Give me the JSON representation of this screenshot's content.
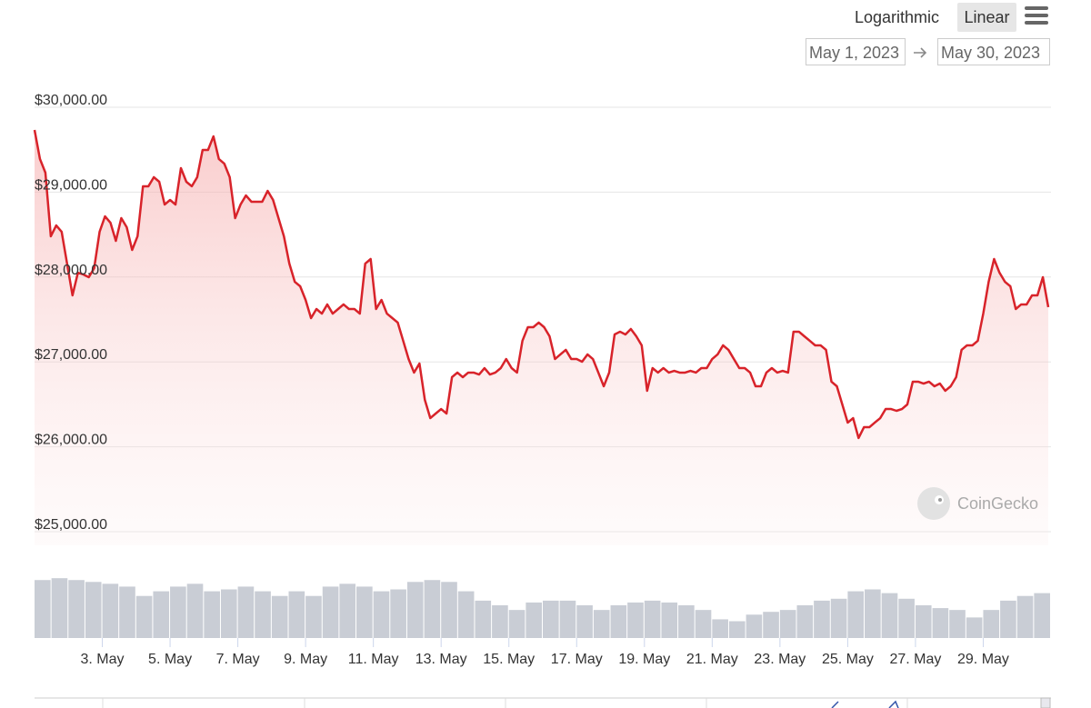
{
  "controls": {
    "scale_options": [
      "Logarithmic",
      "Linear"
    ],
    "date_from": "May 1, 2023",
    "date_to": "May 30, 2023",
    "watermark": "CoinGecko"
  },
  "chart_data": [
    {
      "type": "line",
      "color": "#d8232a",
      "grid": true,
      "xlim": [
        1,
        31
      ],
      "ylim": [
        25000,
        30000
      ],
      "yticks": [
        {
          "value": 25000,
          "label": "$25,000.00"
        },
        {
          "value": 26000,
          "label": "$26,000.00"
        },
        {
          "value": 27000,
          "label": "$27,000.00"
        },
        {
          "value": 28000,
          "label": "$28,000.00"
        },
        {
          "value": 29000,
          "label": "$29,000.00"
        },
        {
          "value": 30000,
          "label": "$30,000.00"
        }
      ],
      "xticks": [
        {
          "value": 3,
          "label": "3. May"
        },
        {
          "value": 5,
          "label": "5. May"
        },
        {
          "value": 7,
          "label": "7. May"
        },
        {
          "value": 9,
          "label": "9. May"
        },
        {
          "value": 11,
          "label": "11. May"
        },
        {
          "value": 13,
          "label": "13. May"
        },
        {
          "value": 15,
          "label": "15. May"
        },
        {
          "value": 17,
          "label": "17. May"
        },
        {
          "value": 19,
          "label": "19. May"
        },
        {
          "value": 21,
          "label": "21. May"
        },
        {
          "value": 23,
          "label": "23. May"
        },
        {
          "value": 25,
          "label": "25. May"
        },
        {
          "value": 27,
          "label": "27. May"
        },
        {
          "value": 29,
          "label": "29. May"
        }
      ],
      "x": [
        1,
        1.16,
        1.32,
        1.48,
        1.64,
        1.8,
        1.96,
        2.12,
        2.28,
        2.44,
        2.6,
        2.76,
        2.92,
        3.08,
        3.24,
        3.4,
        3.56,
        3.72,
        3.88,
        4.04,
        4.2,
        4.36,
        4.52,
        4.68,
        4.84,
        5,
        5.16,
        5.32,
        5.48,
        5.64,
        5.8,
        5.96,
        6.12,
        6.28,
        6.44,
        6.6,
        6.76,
        6.92,
        7.08,
        7.24,
        7.4,
        7.56,
        7.72,
        7.88,
        8.04,
        8.2,
        8.36,
        8.52,
        8.68,
        8.84,
        9,
        9.16,
        9.32,
        9.48,
        9.64,
        9.8,
        9.96,
        10.12,
        10.28,
        10.44,
        10.6,
        10.76,
        10.92,
        11.08,
        11.24,
        11.4,
        11.56,
        11.72,
        11.88,
        12.04,
        12.2,
        12.36,
        12.52,
        12.68,
        12.84,
        13,
        13.16,
        13.32,
        13.48,
        13.64,
        13.8,
        13.96,
        14.12,
        14.28,
        14.44,
        14.6,
        14.76,
        14.92,
        15.08,
        15.24,
        15.4,
        15.56,
        15.72,
        15.88,
        16.04,
        16.2,
        16.36,
        16.52,
        16.68,
        16.84,
        17,
        17.16,
        17.32,
        17.48,
        17.64,
        17.8,
        17.96,
        18.12,
        18.28,
        18.44,
        18.6,
        18.76,
        18.92,
        19.08,
        19.24,
        19.4,
        19.56,
        19.72,
        19.88,
        20.04,
        20.2,
        20.36,
        20.52,
        20.68,
        20.84,
        21,
        21.16,
        21.32,
        21.48,
        21.64,
        21.8,
        21.96,
        22.12,
        22.28,
        22.44,
        22.6,
        22.76,
        22.92,
        23.08,
        23.24,
        23.4,
        23.56,
        23.72,
        23.88,
        24.04,
        24.2,
        24.36,
        24.52,
        24.68,
        24.84,
        25,
        25.16,
        25.32,
        25.48,
        25.64,
        25.8,
        25.96,
        26.12,
        26.28,
        26.44,
        26.6,
        26.76,
        26.92,
        27.08,
        27.24,
        27.4,
        27.56,
        27.72,
        27.88,
        28.04,
        28.2,
        28.36,
        28.52,
        28.68,
        28.84,
        29,
        29.16,
        29.32,
        29.48,
        29.64,
        29.8,
        29.96,
        30.12,
        30.28,
        30.44,
        30.6,
        30.76,
        30.92
      ],
      "values": [
        29732,
        29390,
        29229,
        28480,
        28608,
        28533,
        28158,
        27784,
        28051,
        28030,
        27998,
        28105,
        28533,
        28715,
        28640,
        28426,
        28694,
        28587,
        28319,
        28480,
        29069,
        29069,
        29176,
        29122,
        28854,
        28908,
        28854,
        29283,
        29122,
        29069,
        29176,
        29497,
        29497,
        29657,
        29390,
        29336,
        29176,
        28694,
        28854,
        28961,
        28887,
        28887,
        28887,
        29015,
        28908,
        28694,
        28480,
        28158,
        27944,
        27891,
        27730,
        27516,
        27623,
        27569,
        27677,
        27569,
        27623,
        27677,
        27623,
        27623,
        27569,
        28158,
        28212,
        27623,
        27730,
        27569,
        27516,
        27463,
        27249,
        27034,
        26874,
        26981,
        26552,
        26338,
        26392,
        26445,
        26392,
        26820,
        26874,
        26820,
        26874,
        26874,
        26852,
        26927,
        26852,
        26874,
        26927,
        27034,
        26927,
        26874,
        27249,
        27409,
        27409,
        27463,
        27409,
        27302,
        27034,
        27088,
        27142,
        27034,
        27034,
        27002,
        27088,
        27034,
        26874,
        26713,
        26874,
        27323,
        27356,
        27323,
        27388,
        27302,
        27195,
        26660,
        26927,
        26874,
        26927,
        26874,
        26895,
        26874,
        26874,
        26895,
        26874,
        26927,
        26927,
        27034,
        27088,
        27195,
        27142,
        27034,
        26927,
        26927,
        26874,
        26713,
        26713,
        26874,
        26927,
        26874,
        26895,
        26874,
        27356,
        27356,
        27302,
        27249,
        27195,
        27195,
        27142,
        26767,
        26713,
        26499,
        26285,
        26338,
        26103,
        26231,
        26231,
        26285,
        26338,
        26445,
        26445,
        26424,
        26445,
        26499,
        26767,
        26767,
        26745,
        26767,
        26713,
        26745,
        26660,
        26713,
        26820,
        27142,
        27195,
        27195,
        27249,
        27569,
        27944,
        28212,
        28051,
        27944,
        27891,
        27623,
        27677,
        27677,
        27784,
        27784,
        27998,
        27645
      ]
    },
    {
      "type": "bar",
      "color": "#c9cdd5",
      "xlim": [
        1,
        31
      ],
      "ylim": [
        0,
        70
      ],
      "x": [
        1,
        1.5,
        2,
        2.5,
        3,
        3.5,
        4,
        4.5,
        5,
        5.5,
        6,
        6.5,
        7,
        7.5,
        8,
        8.5,
        9,
        9.5,
        10,
        10.5,
        11,
        11.5,
        12,
        12.5,
        13,
        13.5,
        14,
        14.5,
        15,
        15.5,
        16,
        16.5,
        17,
        17.5,
        18,
        18.5,
        19,
        19.5,
        20,
        20.5,
        21,
        21.5,
        22,
        22.5,
        23,
        23.5,
        24,
        24.5,
        25,
        25.5,
        26,
        26.5,
        27,
        27.5,
        28,
        28.5,
        29,
        29.5,
        30,
        30.5
      ],
      "values": [
        62,
        64,
        62,
        60,
        58,
        55,
        45,
        50,
        55,
        58,
        50,
        52,
        55,
        50,
        45,
        50,
        45,
        55,
        58,
        55,
        50,
        52,
        60,
        62,
        60,
        50,
        40,
        35,
        30,
        38,
        40,
        40,
        35,
        30,
        35,
        38,
        40,
        38,
        35,
        30,
        20,
        18,
        25,
        28,
        30,
        35,
        40,
        42,
        50,
        52,
        48,
        42,
        35,
        32,
        30,
        22,
        30,
        40,
        45,
        48
      ]
    }
  ]
}
